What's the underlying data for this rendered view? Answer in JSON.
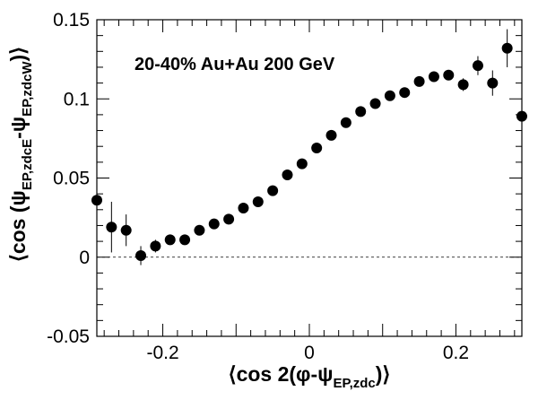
{
  "chart_data": {
    "type": "scatter",
    "annotation": "20-40% Au+Au 200 GeV",
    "xlabel": {
      "prefix": "⟨cos 2(φ-ψ",
      "sub": "EP,zdc",
      "suffix": ")⟩"
    },
    "ylabel": {
      "prefix": "⟨cos (ψ",
      "sub1": "EP,zdcE",
      "middle": "-ψ",
      "sub2": "EP,zdcW",
      "suffix": ")⟩"
    },
    "xlim": [
      -0.29,
      0.29
    ],
    "ylim": [
      -0.05,
      0.15
    ],
    "xticks": [
      -0.2,
      0,
      0.2
    ],
    "xtick_labels": [
      "-0.2",
      "0",
      "0.2"
    ],
    "yticks": [
      -0.05,
      0,
      0.05,
      0.1,
      0.15
    ],
    "ytick_labels": [
      "-0.05",
      "0",
      "0.05",
      "0.1",
      "0.15"
    ],
    "reference_line": {
      "y": 0,
      "style": "dashed"
    },
    "marker": {
      "shape": "filled-circle",
      "color": "#000000"
    },
    "points": [
      {
        "x": -0.29,
        "y": 0.036,
        "err": 0.022
      },
      {
        "x": -0.27,
        "y": 0.019,
        "err": 0.016
      },
      {
        "x": -0.25,
        "y": 0.017,
        "err": 0.01
      },
      {
        "x": -0.23,
        "y": 0.001,
        "err": 0.006
      },
      {
        "x": -0.21,
        "y": 0.007,
        "err": 0.004
      },
      {
        "x": -0.19,
        "y": 0.011,
        "err": 0.003
      },
      {
        "x": -0.17,
        "y": 0.011,
        "err": 0.003
      },
      {
        "x": -0.15,
        "y": 0.017,
        "err": 0.002
      },
      {
        "x": -0.13,
        "y": 0.021,
        "err": 0.002
      },
      {
        "x": -0.11,
        "y": 0.024,
        "err": 0.002
      },
      {
        "x": -0.09,
        "y": 0.031,
        "err": 0.002
      },
      {
        "x": -0.07,
        "y": 0.035,
        "err": 0.002
      },
      {
        "x": -0.05,
        "y": 0.042,
        "err": 0.002
      },
      {
        "x": -0.03,
        "y": 0.052,
        "err": 0.002
      },
      {
        "x": -0.01,
        "y": 0.059,
        "err": 0.002
      },
      {
        "x": 0.01,
        "y": 0.069,
        "err": 0.002
      },
      {
        "x": 0.03,
        "y": 0.077,
        "err": 0.002
      },
      {
        "x": 0.05,
        "y": 0.085,
        "err": 0.002
      },
      {
        "x": 0.07,
        "y": 0.092,
        "err": 0.002
      },
      {
        "x": 0.09,
        "y": 0.097,
        "err": 0.002
      },
      {
        "x": 0.11,
        "y": 0.102,
        "err": 0.002
      },
      {
        "x": 0.13,
        "y": 0.104,
        "err": 0.002
      },
      {
        "x": 0.15,
        "y": 0.111,
        "err": 0.003
      },
      {
        "x": 0.17,
        "y": 0.114,
        "err": 0.003
      },
      {
        "x": 0.19,
        "y": 0.115,
        "err": 0.003
      },
      {
        "x": 0.21,
        "y": 0.109,
        "err": 0.004
      },
      {
        "x": 0.23,
        "y": 0.121,
        "err": 0.006
      },
      {
        "x": 0.25,
        "y": 0.11,
        "err": 0.008
      },
      {
        "x": 0.27,
        "y": 0.132,
        "err": 0.012
      },
      {
        "x": 0.29,
        "y": 0.089,
        "err": 0.02
      }
    ]
  }
}
